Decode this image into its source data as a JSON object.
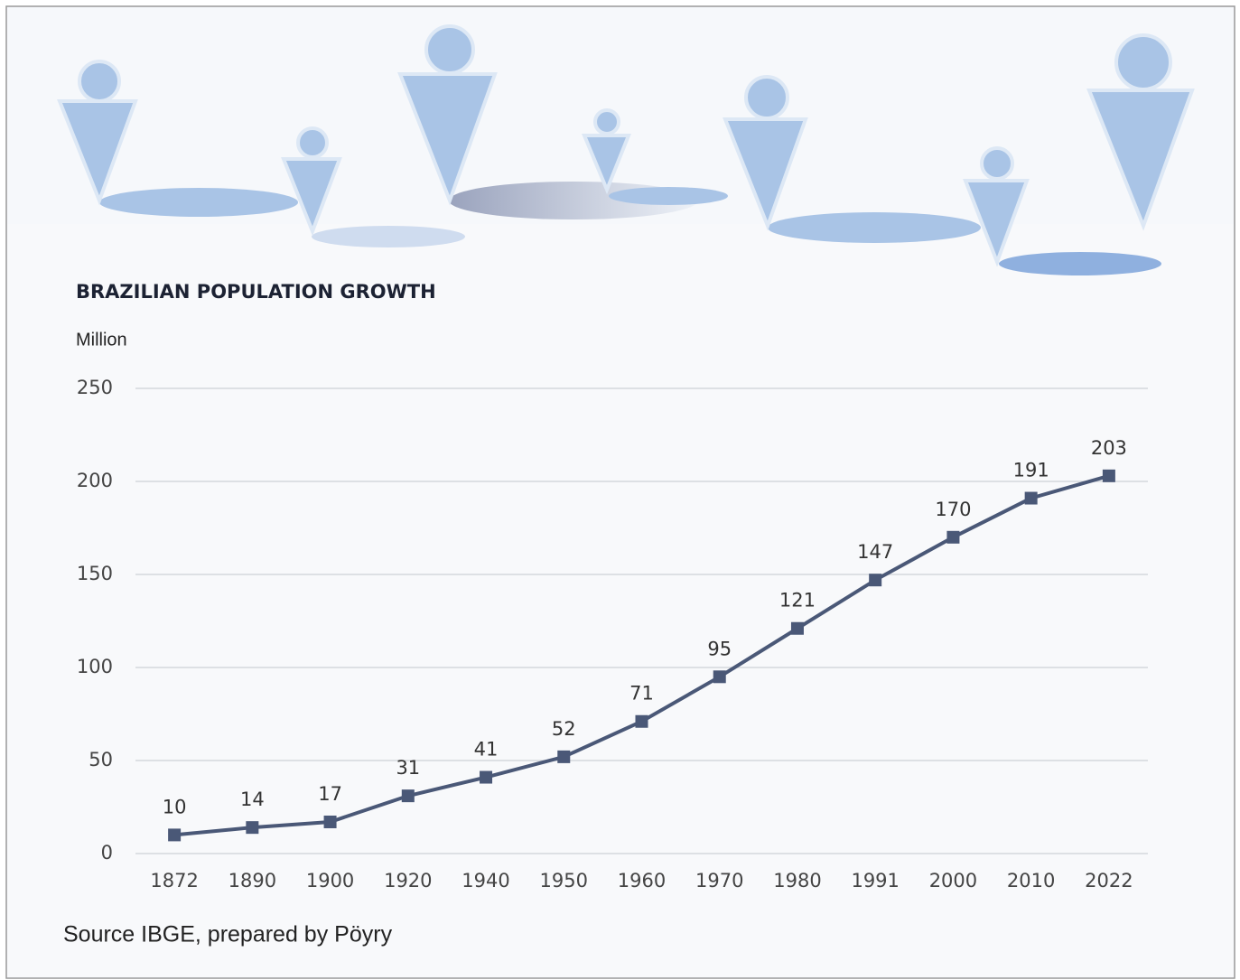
{
  "chart_data": {
    "type": "line",
    "title": "BRAZILIAN POPULATION GROWTH",
    "y_label": "Million",
    "source": "Source IBGE, prepared by Pöyry",
    "categories": [
      "1872",
      "1890",
      "1900",
      "1920",
      "1940",
      "1950",
      "1960",
      "1970",
      "1980",
      "1991",
      "2000",
      "2010",
      "2022"
    ],
    "values": [
      10,
      14,
      17,
      31,
      41,
      52,
      71,
      95,
      121,
      147,
      170,
      191,
      203
    ],
    "color": "#4a5877",
    "ylim": [
      0,
      250
    ],
    "yticks": [
      0,
      50,
      100,
      150,
      200,
      250
    ],
    "grid": true
  }
}
